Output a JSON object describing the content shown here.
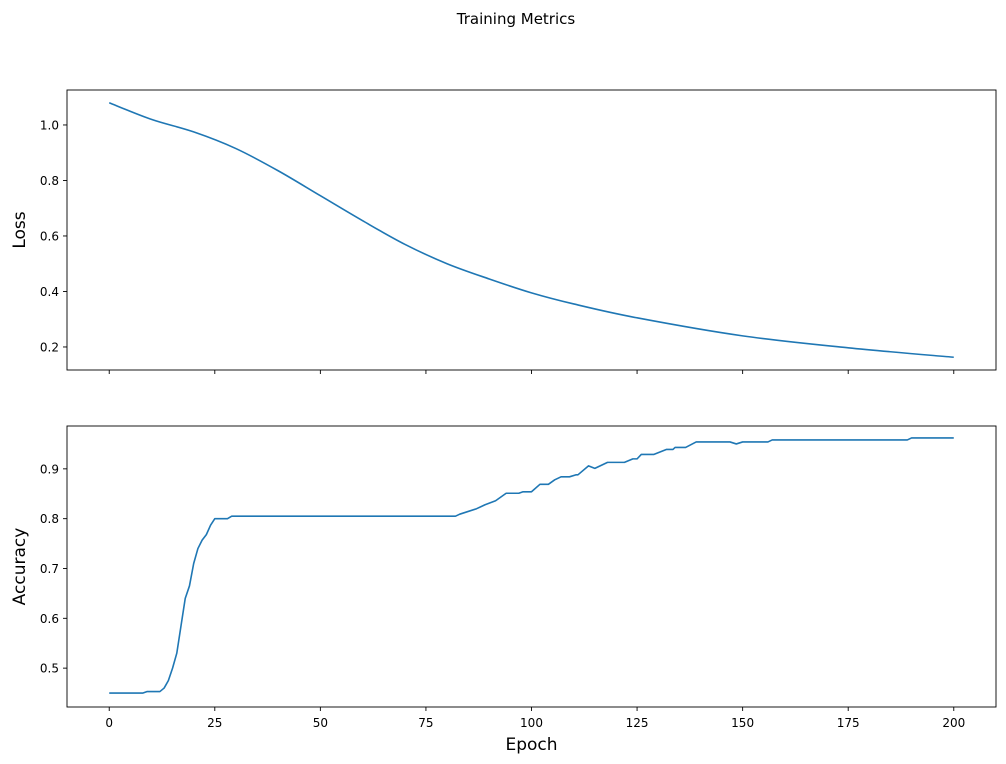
{
  "figure_title": "Training Metrics",
  "chart_data": [
    {
      "type": "line",
      "title": "",
      "xlabel": "",
      "ylabel": "Loss",
      "xlim": [
        -10,
        210
      ],
      "ylim": [
        0.117,
        1.126
      ],
      "xticks": [
        0,
        25,
        50,
        75,
        100,
        125,
        150,
        175,
        200
      ],
      "xtick_labels_shown": false,
      "yticks": [
        0.2,
        0.4,
        0.6,
        0.8,
        1.0
      ],
      "ytick_labels": [
        "0.2",
        "0.4",
        "0.6",
        "0.8",
        "1.0"
      ],
      "grid": false,
      "color": "#1f77b4",
      "x": [
        0,
        10,
        20,
        30,
        40,
        50,
        60,
        70,
        80,
        90,
        100,
        110,
        125,
        150,
        175,
        200
      ],
      "y": [
        1.08,
        1.02,
        0.975,
        0.915,
        0.835,
        0.745,
        0.655,
        0.57,
        0.5,
        0.445,
        0.395,
        0.355,
        0.305,
        0.24,
        0.197,
        0.163
      ]
    },
    {
      "type": "line",
      "title": "",
      "xlabel": "Epoch",
      "ylabel": "Accuracy",
      "xlim": [
        -10,
        210
      ],
      "ylim": [
        0.422,
        0.986
      ],
      "xticks": [
        0,
        25,
        50,
        75,
        100,
        125,
        150,
        175,
        200
      ],
      "xtick_labels": [
        "0",
        "25",
        "50",
        "75",
        "100",
        "125",
        "150",
        "175",
        "200"
      ],
      "yticks": [
        0.5,
        0.6,
        0.7,
        0.8,
        0.9
      ],
      "ytick_labels": [
        "0.5",
        "0.6",
        "0.7",
        "0.8",
        "0.9"
      ],
      "grid": false,
      "color": "#1f77b4",
      "x": [
        0,
        8,
        9,
        12,
        13,
        14,
        15,
        16,
        17,
        18,
        19,
        20,
        21,
        22,
        23,
        24,
        25,
        28,
        29,
        82,
        83,
        87,
        89,
        91.5,
        94,
        97,
        98,
        100,
        102,
        104,
        105.5,
        107,
        109,
        110.5,
        111,
        113.5,
        115,
        118,
        122,
        124,
        125,
        126,
        129,
        132,
        133.5,
        134,
        136.5,
        139,
        147,
        148.5,
        150,
        156,
        157,
        189,
        190,
        200
      ],
      "y": [
        0.45,
        0.45,
        0.453,
        0.453,
        0.46,
        0.475,
        0.5,
        0.53,
        0.585,
        0.64,
        0.665,
        0.71,
        0.74,
        0.757,
        0.768,
        0.787,
        0.8,
        0.8,
        0.805,
        0.805,
        0.809,
        0.82,
        0.828,
        0.836,
        0.851,
        0.851,
        0.854,
        0.854,
        0.869,
        0.869,
        0.878,
        0.884,
        0.884,
        0.888,
        0.888,
        0.906,
        0.901,
        0.913,
        0.913,
        0.92,
        0.92,
        0.929,
        0.929,
        0.939,
        0.939,
        0.943,
        0.943,
        0.954,
        0.954,
        0.95,
        0.954,
        0.954,
        0.958,
        0.958,
        0.962,
        0.962
      ]
    }
  ]
}
